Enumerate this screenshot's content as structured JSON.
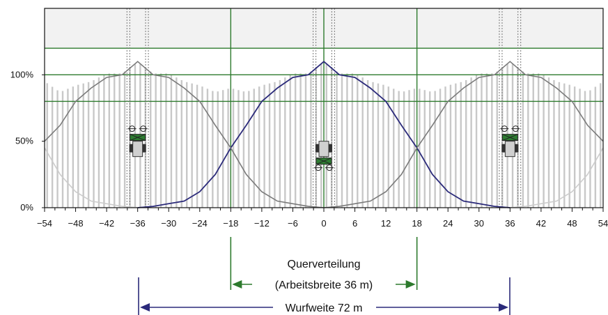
{
  "chart_data": {
    "type": "line",
    "title": "",
    "xlabel": "",
    "ylabel": "",
    "xlim": [
      -54,
      54
    ],
    "ylim": [
      0,
      150
    ],
    "x_ticks": [
      -54,
      -48,
      -42,
      -36,
      -30,
      -24,
      -18,
      -12,
      -6,
      0,
      6,
      12,
      18,
      24,
      30,
      36,
      42,
      48,
      54
    ],
    "x_tick_labels": [
      "−54",
      "−48",
      "−42",
      "−36",
      "−30",
      "−24",
      "−18",
      "−12",
      "−6",
      "0",
      "6",
      "12",
      "18",
      "24",
      "30",
      "36",
      "42",
      "48",
      "54"
    ],
    "y_ticks": [
      0,
      50,
      100
    ],
    "y_tick_labels": [
      "0%",
      "50%",
      "100%"
    ],
    "reference_lines_y": [
      80,
      100,
      120
    ],
    "working_width_lines_x": [
      -18,
      0,
      18
    ],
    "tramline_x": [
      -37.8,
      -34.2,
      -1.8,
      1.8,
      34.2,
      37.8
    ],
    "bar_spacing": 1,
    "series": [
      {
        "color": "#2b2a7a",
        "x": [
          -36,
          -33,
          -30,
          -27,
          -24,
          -21,
          -18,
          -15,
          -12,
          -9,
          -6,
          -3,
          0,
          3,
          6,
          9,
          12,
          15,
          18,
          21,
          24,
          27,
          30,
          33,
          36
        ],
        "values": [
          0,
          1,
          3,
          5,
          12,
          25,
          45,
          62,
          80,
          90,
          98,
          100,
          110,
          100,
          98,
          90,
          80,
          62,
          45,
          25,
          12,
          5,
          3,
          1,
          0
        ]
      },
      {
        "color": "#7a7a7a",
        "x": [
          -54,
          -51,
          -48,
          -45,
          -42,
          -39,
          -36,
          -33,
          -30,
          -27,
          -24,
          -21,
          -18,
          -15,
          -12,
          -9,
          -6,
          -3,
          0
        ],
        "values": [
          50,
          62,
          80,
          90,
          98,
          100,
          110,
          100,
          98,
          90,
          80,
          62,
          45,
          25,
          12,
          5,
          3,
          1,
          0
        ]
      },
      {
        "color": "#7a7a7a",
        "x": [
          0,
          3,
          6,
          9,
          12,
          15,
          18,
          21,
          24,
          27,
          30,
          33,
          36,
          39,
          42,
          45,
          48,
          51,
          54
        ],
        "values": [
          0,
          1,
          3,
          5,
          12,
          25,
          45,
          62,
          80,
          90,
          98,
          100,
          110,
          100,
          98,
          90,
          80,
          62,
          50
        ]
      },
      {
        "color": "#cccccc",
        "x": [
          -54,
          -51,
          -48,
          -45,
          -42,
          -39,
          -36
        ],
        "values": [
          45,
          25,
          12,
          5,
          3,
          1,
          0
        ]
      },
      {
        "color": "#cccccc",
        "x": [
          36,
          39,
          42,
          45,
          48,
          51,
          54
        ],
        "values": [
          0,
          1,
          3,
          5,
          12,
          25,
          45
        ]
      }
    ],
    "tractors_x": [
      -36,
      0,
      36
    ],
    "annotations": {
      "working_width_line1": "Querverteilung",
      "working_width_line2": "(Arbeitsbreite 36 m)",
      "spread_width": "Wurfweite 72 m"
    },
    "colors": {
      "working_width_line": "#2d7a2d",
      "spread_width_line": "#2b2a7a",
      "main_curve": "#2b2a7a",
      "overlap_curve": "#7a7a7a",
      "faint_curve": "#cccccc",
      "bars": "#c8c8c8",
      "upper_band": "#f2f2f2",
      "tractor_body": "#d0d0d0",
      "tractor_spreader": "#2e7d32"
    }
  }
}
